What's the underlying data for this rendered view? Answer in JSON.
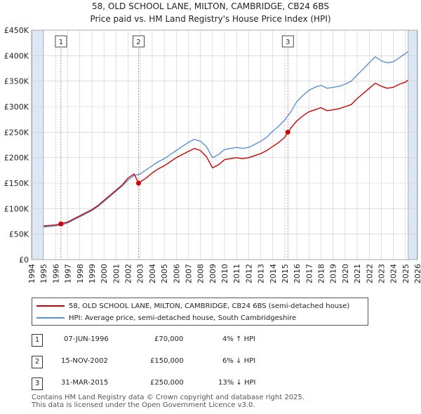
{
  "title_line1": "58, OLD SCHOOL LANE, MILTON, CAMBRIDGE, CB24 6BS",
  "title_line2": "Price paid vs. HM Land Registry's House Price Index (HPI)",
  "colors": {
    "price": "#cc0000",
    "hpi": "#5b8fd4",
    "shade": "#dde6f5",
    "grid": "#cccccc"
  },
  "legend": {
    "price_label": "58, OLD SCHOOL LANE, MILTON, CAMBRIDGE, CB24 6BS (semi-detached house)",
    "hpi_label": "HPI: Average price, semi-detached house, South Cambridgeshire"
  },
  "sales": [
    {
      "num": "1",
      "date": "07-JUN-1996",
      "price": "£70,000",
      "hpi_diff": "4% ↑ HPI"
    },
    {
      "num": "2",
      "date": "15-NOV-2002",
      "price": "£150,000",
      "hpi_diff": "6% ↓ HPI"
    },
    {
      "num": "3",
      "date": "31-MAR-2015",
      "price": "£250,000",
      "hpi_diff": "13% ↓ HPI"
    }
  ],
  "footer_line1": "Contains HM Land Registry data © Crown copyright and database right 2025.",
  "footer_line2": "This data is licensed under the Open Government Licence v3.0.",
  "chart_data": {
    "type": "line",
    "title": "58, OLD SCHOOL LANE, MILTON, CAMBRIDGE, CB24 6BS",
    "subtitle": "Price paid vs. HM Land Registry's House Price Index (HPI)",
    "xlabel": "",
    "ylabel": "",
    "xlim": [
      1994,
      2026
    ],
    "ylim": [
      0,
      450000
    ],
    "x_ticks": [
      1994,
      1995,
      1996,
      1997,
      1998,
      1999,
      2000,
      2001,
      2002,
      2003,
      2004,
      2005,
      2006,
      2007,
      2008,
      2009,
      2010,
      2011,
      2012,
      2013,
      2014,
      2015,
      2016,
      2017,
      2018,
      2019,
      2020,
      2021,
      2022,
      2023,
      2024,
      2025,
      2026
    ],
    "y_ticks": [
      0,
      50000,
      100000,
      150000,
      200000,
      250000,
      300000,
      350000,
      400000,
      450000
    ],
    "y_tick_labels": [
      "£0",
      "£50K",
      "£100K",
      "£150K",
      "£200K",
      "£250K",
      "£300K",
      "£350K",
      "£400K",
      "£450K"
    ],
    "grid": true,
    "shaded_ranges": [
      [
        1994,
        1995
      ],
      [
        2025.2,
        2026
      ]
    ],
    "sale_markers": [
      {
        "label": "1",
        "x": 1996.44,
        "y": 70000
      },
      {
        "label": "2",
        "x": 2002.87,
        "y": 150000
      },
      {
        "label": "3",
        "x": 2015.25,
        "y": 250000
      }
    ],
    "series": [
      {
        "name": "58, OLD SCHOOL LANE, MILTON, CAMBRIDGE, CB24 6BS (semi-detached house)",
        "color": "#cc0000",
        "x": [
          1995.0,
          1995.5,
          1996.0,
          1996.44,
          1997.0,
          1997.5,
          1998.0,
          1998.5,
          1999.0,
          1999.5,
          2000.0,
          2000.5,
          2001.0,
          2001.5,
          2002.0,
          2002.5,
          2002.87,
          2003.5,
          2004.0,
          2004.5,
          2005.0,
          2005.5,
          2006.0,
          2006.5,
          2007.0,
          2007.5,
          2008.0,
          2008.5,
          2009.0,
          2009.5,
          2010.0,
          2010.5,
          2011.0,
          2011.5,
          2012.0,
          2012.5,
          2013.0,
          2013.5,
          2014.0,
          2014.5,
          2015.0,
          2015.25,
          2015.5,
          2016.0,
          2016.5,
          2017.0,
          2017.5,
          2018.0,
          2018.5,
          2019.0,
          2019.5,
          2020.0,
          2020.5,
          2021.0,
          2021.5,
          2022.0,
          2022.5,
          2023.0,
          2023.5,
          2024.0,
          2024.5,
          2025.0,
          2025.2
        ],
        "y": [
          66000,
          67000,
          68000,
          70000,
          74000,
          80000,
          86000,
          92000,
          98000,
          106000,
          116000,
          126000,
          136000,
          146000,
          160000,
          168000,
          150000,
          160000,
          170000,
          178000,
          184000,
          192000,
          200000,
          206000,
          212000,
          218000,
          214000,
          202000,
          180000,
          186000,
          196000,
          198000,
          200000,
          198000,
          200000,
          204000,
          208000,
          214000,
          222000,
          230000,
          240000,
          250000,
          258000,
          272000,
          282000,
          290000,
          294000,
          298000,
          292000,
          294000,
          296000,
          300000,
          304000,
          316000,
          326000,
          336000,
          346000,
          340000,
          336000,
          338000,
          344000,
          348000,
          352000
        ]
      },
      {
        "name": "HPI: Average price, semi-detached house, South Cambridgeshire",
        "color": "#5b8fd4",
        "x": [
          1995.0,
          1995.5,
          1996.0,
          1996.5,
          1997.0,
          1997.5,
          1998.0,
          1998.5,
          1999.0,
          1999.5,
          2000.0,
          2000.5,
          2001.0,
          2001.5,
          2002.0,
          2002.5,
          2003.0,
          2003.5,
          2004.0,
          2004.5,
          2005.0,
          2005.5,
          2006.0,
          2006.5,
          2007.0,
          2007.5,
          2008.0,
          2008.5,
          2009.0,
          2009.5,
          2010.0,
          2010.5,
          2011.0,
          2011.5,
          2012.0,
          2012.5,
          2013.0,
          2013.5,
          2014.0,
          2014.5,
          2015.0,
          2015.5,
          2016.0,
          2016.5,
          2017.0,
          2017.5,
          2018.0,
          2018.5,
          2019.0,
          2019.5,
          2020.0,
          2020.5,
          2021.0,
          2021.5,
          2022.0,
          2022.5,
          2023.0,
          2023.5,
          2024.0,
          2024.5,
          2025.0,
          2025.2
        ],
        "y": [
          64000,
          65000,
          66500,
          68000,
          72000,
          78000,
          84000,
          90000,
          96000,
          104000,
          114000,
          124000,
          134000,
          144000,
          156000,
          165000,
          168000,
          176000,
          184000,
          192000,
          198000,
          206000,
          214000,
          222000,
          230000,
          236000,
          232000,
          222000,
          200000,
          206000,
          216000,
          218000,
          220000,
          218000,
          220000,
          226000,
          232000,
          240000,
          252000,
          262000,
          274000,
          290000,
          310000,
          322000,
          332000,
          338000,
          342000,
          336000,
          338000,
          340000,
          344000,
          350000,
          362000,
          374000,
          386000,
          398000,
          390000,
          386000,
          388000,
          396000,
          404000,
          408000
        ]
      }
    ]
  }
}
